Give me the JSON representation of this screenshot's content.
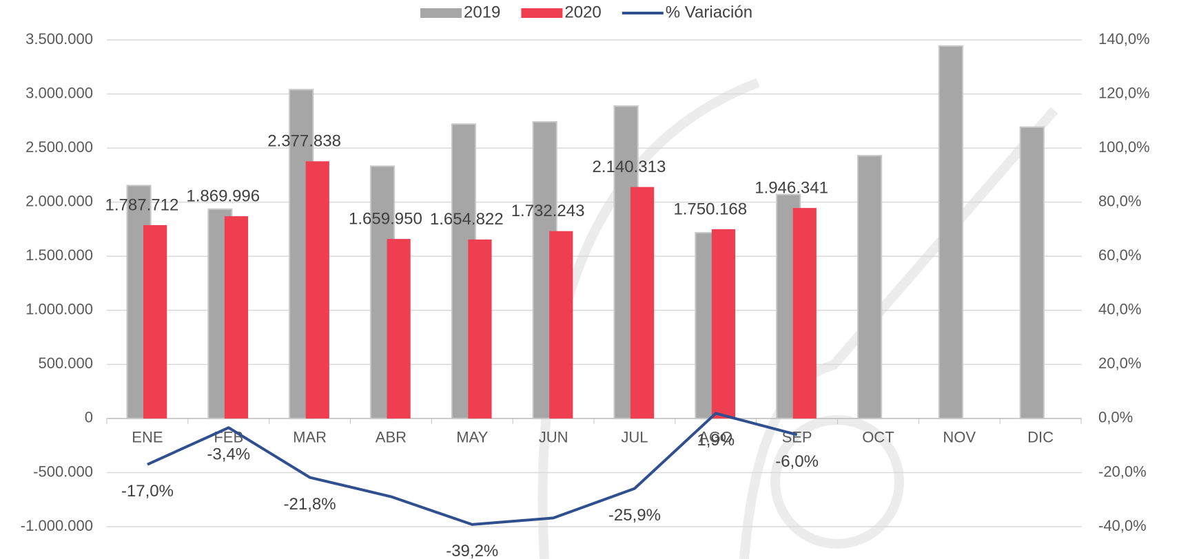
{
  "chart_data": {
    "type": "bar",
    "categories": [
      "ENE",
      "FEB",
      "MAR",
      "ABR",
      "MAY",
      "JUN",
      "JUL",
      "AGO",
      "SEP",
      "OCT",
      "NOV",
      "DIC"
    ],
    "series": [
      {
        "name": "2019",
        "color": "#a6a6a6",
        "values": [
          2153870,
          1935814,
          3040714,
          2333000,
          2721747,
          2743000,
          2888411,
          1717535,
          2070576,
          2430000,
          3444000,
          2694000
        ]
      },
      {
        "name": "2020",
        "color": "#ef3e50",
        "values": [
          1787712,
          1869996,
          2377838,
          1659950,
          1654822,
          1732243,
          2140313,
          1750168,
          1946341,
          null,
          null,
          null
        ],
        "value_labels": [
          "1.787.712",
          "1.869.996",
          "2.377.838",
          "1.659.950",
          "1.654.822",
          "1.732.243",
          "2.140.313",
          "1.750.168",
          "1.946.341",
          null,
          null,
          null
        ]
      },
      {
        "name": "% Variación",
        "type": "line",
        "axis": "y2",
        "color": "#2f4f8f",
        "values": [
          -17.0,
          -3.4,
          -21.8,
          -28.9,
          -39.2,
          -36.8,
          -25.9,
          1.9,
          -6.0,
          null,
          null,
          null
        ],
        "value_labels": [
          "-17,0%",
          "-3,4%",
          "-21,8%",
          null,
          "-39,2%",
          null,
          "-25,9%",
          "1,9%",
          "-6,0%",
          null,
          null,
          null
        ]
      }
    ],
    "ylim": [
      -1000000,
      3500000
    ],
    "yticks": [
      {
        "value": -1000000,
        "label": "-1.000.000"
      },
      {
        "value": -500000,
        "label": "-500.000"
      },
      0,
      {
        "value": 500000,
        "label": "500.000"
      },
      {
        "value": 1000000,
        "label": "1.000.000"
      },
      {
        "value": 1500000,
        "label": "1.500.000"
      },
      {
        "value": 2000000,
        "label": "2.000.000"
      },
      {
        "value": 2500000,
        "label": "2.500.000"
      },
      {
        "value": 3000000,
        "label": "3.000.000"
      },
      {
        "value": 3500000,
        "label": "3.500.000"
      }
    ],
    "y2lim": [
      -40,
      140
    ],
    "y2ticks": [
      {
        "value": -40,
        "label": "-40,0%"
      },
      {
        "value": -20,
        "label": "-20,0%"
      },
      {
        "value": 0,
        "label": "0,0%"
      },
      {
        "value": 20,
        "label": "20,0%"
      },
      {
        "value": 40,
        "label": "40,0%"
      },
      {
        "value": 60,
        "label": "60,0%"
      },
      {
        "value": 80,
        "label": "80,0%"
      },
      {
        "value": 100,
        "label": "100,0%"
      },
      {
        "value": 120,
        "label": "120,0%"
      },
      {
        "value": 140,
        "label": "140,0%"
      }
    ],
    "grid": true,
    "legend": "top"
  }
}
